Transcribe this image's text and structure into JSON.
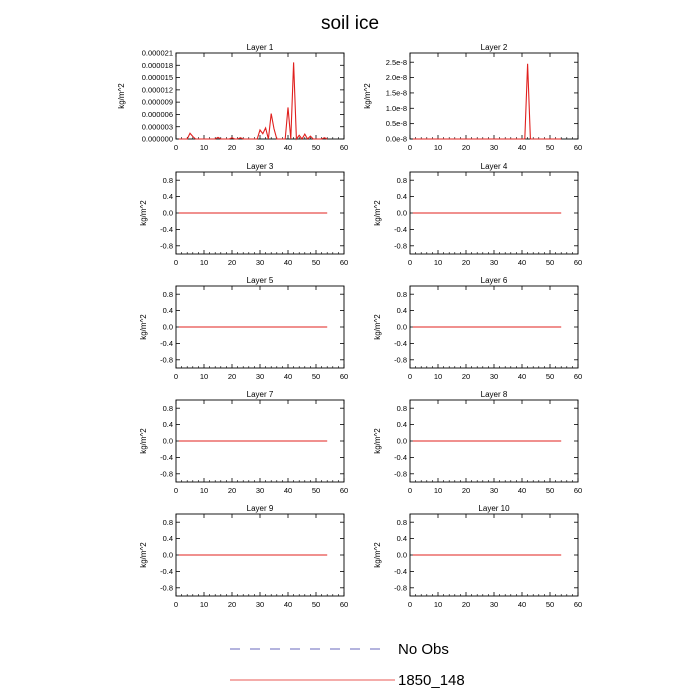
{
  "title": "soil ice",
  "legend": [
    {
      "label": "No Obs",
      "color": "#3a3aa8",
      "dash": true
    },
    {
      "label": "1850_148",
      "color": "#e0201e",
      "dash": false
    }
  ],
  "chart_data": [
    {
      "type": "line",
      "title": "Layer 1",
      "ylabel": "kg/m^2",
      "xlim": [
        0,
        60
      ],
      "xticks": [
        0,
        10,
        20,
        30,
        40,
        50,
        60
      ],
      "xtick_labels": [
        "0",
        "10",
        "20",
        "30",
        "40",
        "50",
        "60"
      ],
      "ylim": [
        0,
        2.1e-05
      ],
      "yticks": [
        0,
        3e-06,
        6e-06,
        9e-06,
        1.2e-05,
        1.5e-05,
        1.8e-05,
        2.1e-05
      ],
      "ytick_labels": [
        "0.000000",
        "0.000003",
        "0.000006",
        "0.000009",
        "0.000012",
        "0.000015",
        "0.000018",
        "0.000021"
      ],
      "series": [
        {
          "color": "#e0201e",
          "x": [
            1,
            2,
            3,
            4,
            5,
            6,
            7,
            8,
            9,
            10,
            11,
            12,
            13,
            14,
            15,
            16,
            17,
            18,
            19,
            20,
            21,
            22,
            23,
            24,
            25,
            26,
            27,
            28,
            29,
            30,
            31,
            32,
            33,
            34,
            35,
            36,
            37,
            38,
            39,
            40,
            41,
            42,
            43,
            44,
            45,
            46,
            47,
            48,
            49,
            50,
            51,
            52,
            53,
            54
          ],
          "y": [
            0,
            0,
            0,
            0,
            1.4e-06,
            6e-07,
            0,
            0,
            0,
            0,
            0,
            0,
            0,
            0,
            4e-07,
            0,
            0,
            0,
            0,
            3e-07,
            0,
            0,
            3e-07,
            0,
            0,
            0,
            0,
            0,
            0,
            2.2e-06,
            1.3e-06,
            2.7e-06,
            0,
            6.2e-06,
            2.5e-06,
            0,
            0,
            0,
            0,
            7.7e-06,
            0,
            1.87e-05,
            0,
            9e-07,
            0,
            1.2e-06,
            0,
            7e-07,
            0,
            0,
            0,
            0,
            3e-07,
            0
          ]
        }
      ]
    },
    {
      "type": "line",
      "title": "Layer 2",
      "ylabel": "kg/m^2",
      "xlim": [
        0,
        60
      ],
      "xticks": [
        0,
        10,
        20,
        30,
        40,
        50,
        60
      ],
      "xtick_labels": [
        "0",
        "10",
        "20",
        "30",
        "40",
        "50",
        "60"
      ],
      "ylim": [
        0,
        2.8e-08
      ],
      "yticks": [
        0,
        5e-09,
        1e-08,
        1.5e-08,
        2e-08,
        2.5e-08
      ],
      "ytick_labels": [
        "0.0e-8",
        "0.5e-8",
        "1.0e-8",
        "1.5e-8",
        "2.0e-8",
        "2.5e-8"
      ],
      "series": [
        {
          "color": "#e0201e",
          "x": [
            1,
            41,
            42,
            43,
            54
          ],
          "y": [
            0,
            0,
            2.45e-08,
            0,
            0
          ]
        }
      ]
    },
    {
      "type": "line",
      "title": "Layer 3",
      "ylabel": "kg/m^2",
      "xlim": [
        0,
        60
      ],
      "xticks": [
        0,
        10,
        20,
        30,
        40,
        50,
        60
      ],
      "xtick_labels": [
        "0",
        "10",
        "20",
        "30",
        "40",
        "50",
        "60"
      ],
      "ylim": [
        -1,
        1
      ],
      "yticks": [
        -0.8,
        -0.4,
        0,
        0.4,
        0.8
      ],
      "ytick_labels": [
        "-0.8",
        "-0.4",
        "0.0",
        "0.4",
        "0.8"
      ],
      "series": [
        {
          "color": "#e0201e",
          "x": [
            1,
            54
          ],
          "y": [
            0,
            0
          ]
        }
      ]
    },
    {
      "type": "line",
      "title": "Layer 4",
      "ylabel": "kg/m^2",
      "xlim": [
        0,
        60
      ],
      "xticks": [
        0,
        10,
        20,
        30,
        40,
        50,
        60
      ],
      "xtick_labels": [
        "0",
        "10",
        "20",
        "30",
        "40",
        "50",
        "60"
      ],
      "ylim": [
        -1,
        1
      ],
      "yticks": [
        -0.8,
        -0.4,
        0,
        0.4,
        0.8
      ],
      "ytick_labels": [
        "-0.8",
        "-0.4",
        "0.0",
        "0.4",
        "0.8"
      ],
      "series": [
        {
          "color": "#e0201e",
          "x": [
            1,
            54
          ],
          "y": [
            0,
            0
          ]
        }
      ]
    },
    {
      "type": "line",
      "title": "Layer 5",
      "ylabel": "kg/m^2",
      "xlim": [
        0,
        60
      ],
      "xticks": [
        0,
        10,
        20,
        30,
        40,
        50,
        60
      ],
      "xtick_labels": [
        "0",
        "10",
        "20",
        "30",
        "40",
        "50",
        "60"
      ],
      "ylim": [
        -1,
        1
      ],
      "yticks": [
        -0.8,
        -0.4,
        0,
        0.4,
        0.8
      ],
      "ytick_labels": [
        "-0.8",
        "-0.4",
        "0.0",
        "0.4",
        "0.8"
      ],
      "series": [
        {
          "color": "#e0201e",
          "x": [
            1,
            54
          ],
          "y": [
            0,
            0
          ]
        }
      ]
    },
    {
      "type": "line",
      "title": "Layer 6",
      "ylabel": "kg/m^2",
      "xlim": [
        0,
        60
      ],
      "xticks": [
        0,
        10,
        20,
        30,
        40,
        50,
        60
      ],
      "xtick_labels": [
        "0",
        "10",
        "20",
        "30",
        "40",
        "50",
        "60"
      ],
      "ylim": [
        -1,
        1
      ],
      "yticks": [
        -0.8,
        -0.4,
        0,
        0.4,
        0.8
      ],
      "ytick_labels": [
        "-0.8",
        "-0.4",
        "0.0",
        "0.4",
        "0.8"
      ],
      "series": [
        {
          "color": "#e0201e",
          "x": [
            1,
            54
          ],
          "y": [
            0,
            0
          ]
        }
      ]
    },
    {
      "type": "line",
      "title": "Layer 7",
      "ylabel": "kg/m^2",
      "xlim": [
        0,
        60
      ],
      "xticks": [
        0,
        10,
        20,
        30,
        40,
        50,
        60
      ],
      "xtick_labels": [
        "0",
        "10",
        "20",
        "30",
        "40",
        "50",
        "60"
      ],
      "ylim": [
        -1,
        1
      ],
      "yticks": [
        -0.8,
        -0.4,
        0,
        0.4,
        0.8
      ],
      "ytick_labels": [
        "-0.8",
        "-0.4",
        "0.0",
        "0.4",
        "0.8"
      ],
      "series": [
        {
          "color": "#e0201e",
          "x": [
            1,
            54
          ],
          "y": [
            0,
            0
          ]
        }
      ]
    },
    {
      "type": "line",
      "title": "Layer 8",
      "ylabel": "kg/m^2",
      "xlim": [
        0,
        60
      ],
      "xticks": [
        0,
        10,
        20,
        30,
        40,
        50,
        60
      ],
      "xtick_labels": [
        "0",
        "10",
        "20",
        "30",
        "40",
        "50",
        "60"
      ],
      "ylim": [
        -1,
        1
      ],
      "yticks": [
        -0.8,
        -0.4,
        0,
        0.4,
        0.8
      ],
      "ytick_labels": [
        "-0.8",
        "-0.4",
        "0.0",
        "0.4",
        "0.8"
      ],
      "series": [
        {
          "color": "#e0201e",
          "x": [
            1,
            54
          ],
          "y": [
            0,
            0
          ]
        }
      ]
    },
    {
      "type": "line",
      "title": "Layer 9",
      "ylabel": "kg/m^2",
      "xlim": [
        0,
        60
      ],
      "xticks": [
        0,
        10,
        20,
        30,
        40,
        50,
        60
      ],
      "xtick_labels": [
        "0",
        "10",
        "20",
        "30",
        "40",
        "50",
        "60"
      ],
      "ylim": [
        -1,
        1
      ],
      "yticks": [
        -0.8,
        -0.4,
        0,
        0.4,
        0.8
      ],
      "ytick_labels": [
        "-0.8",
        "-0.4",
        "0.0",
        "0.4",
        "0.8"
      ],
      "series": [
        {
          "color": "#e0201e",
          "x": [
            1,
            54
          ],
          "y": [
            0,
            0
          ]
        }
      ]
    },
    {
      "type": "line",
      "title": "Layer 10",
      "ylabel": "kg/m^2",
      "xlim": [
        0,
        60
      ],
      "xticks": [
        0,
        10,
        20,
        30,
        40,
        50,
        60
      ],
      "xtick_labels": [
        "0",
        "10",
        "20",
        "30",
        "40",
        "50",
        "60"
      ],
      "ylim": [
        -1,
        1
      ],
      "yticks": [
        -0.8,
        -0.4,
        0,
        0.4,
        0.8
      ],
      "ytick_labels": [
        "-0.8",
        "-0.4",
        "0.0",
        "0.4",
        "0.8"
      ],
      "series": [
        {
          "color": "#e0201e",
          "x": [
            1,
            54
          ],
          "y": [
            0,
            0
          ]
        }
      ]
    }
  ]
}
